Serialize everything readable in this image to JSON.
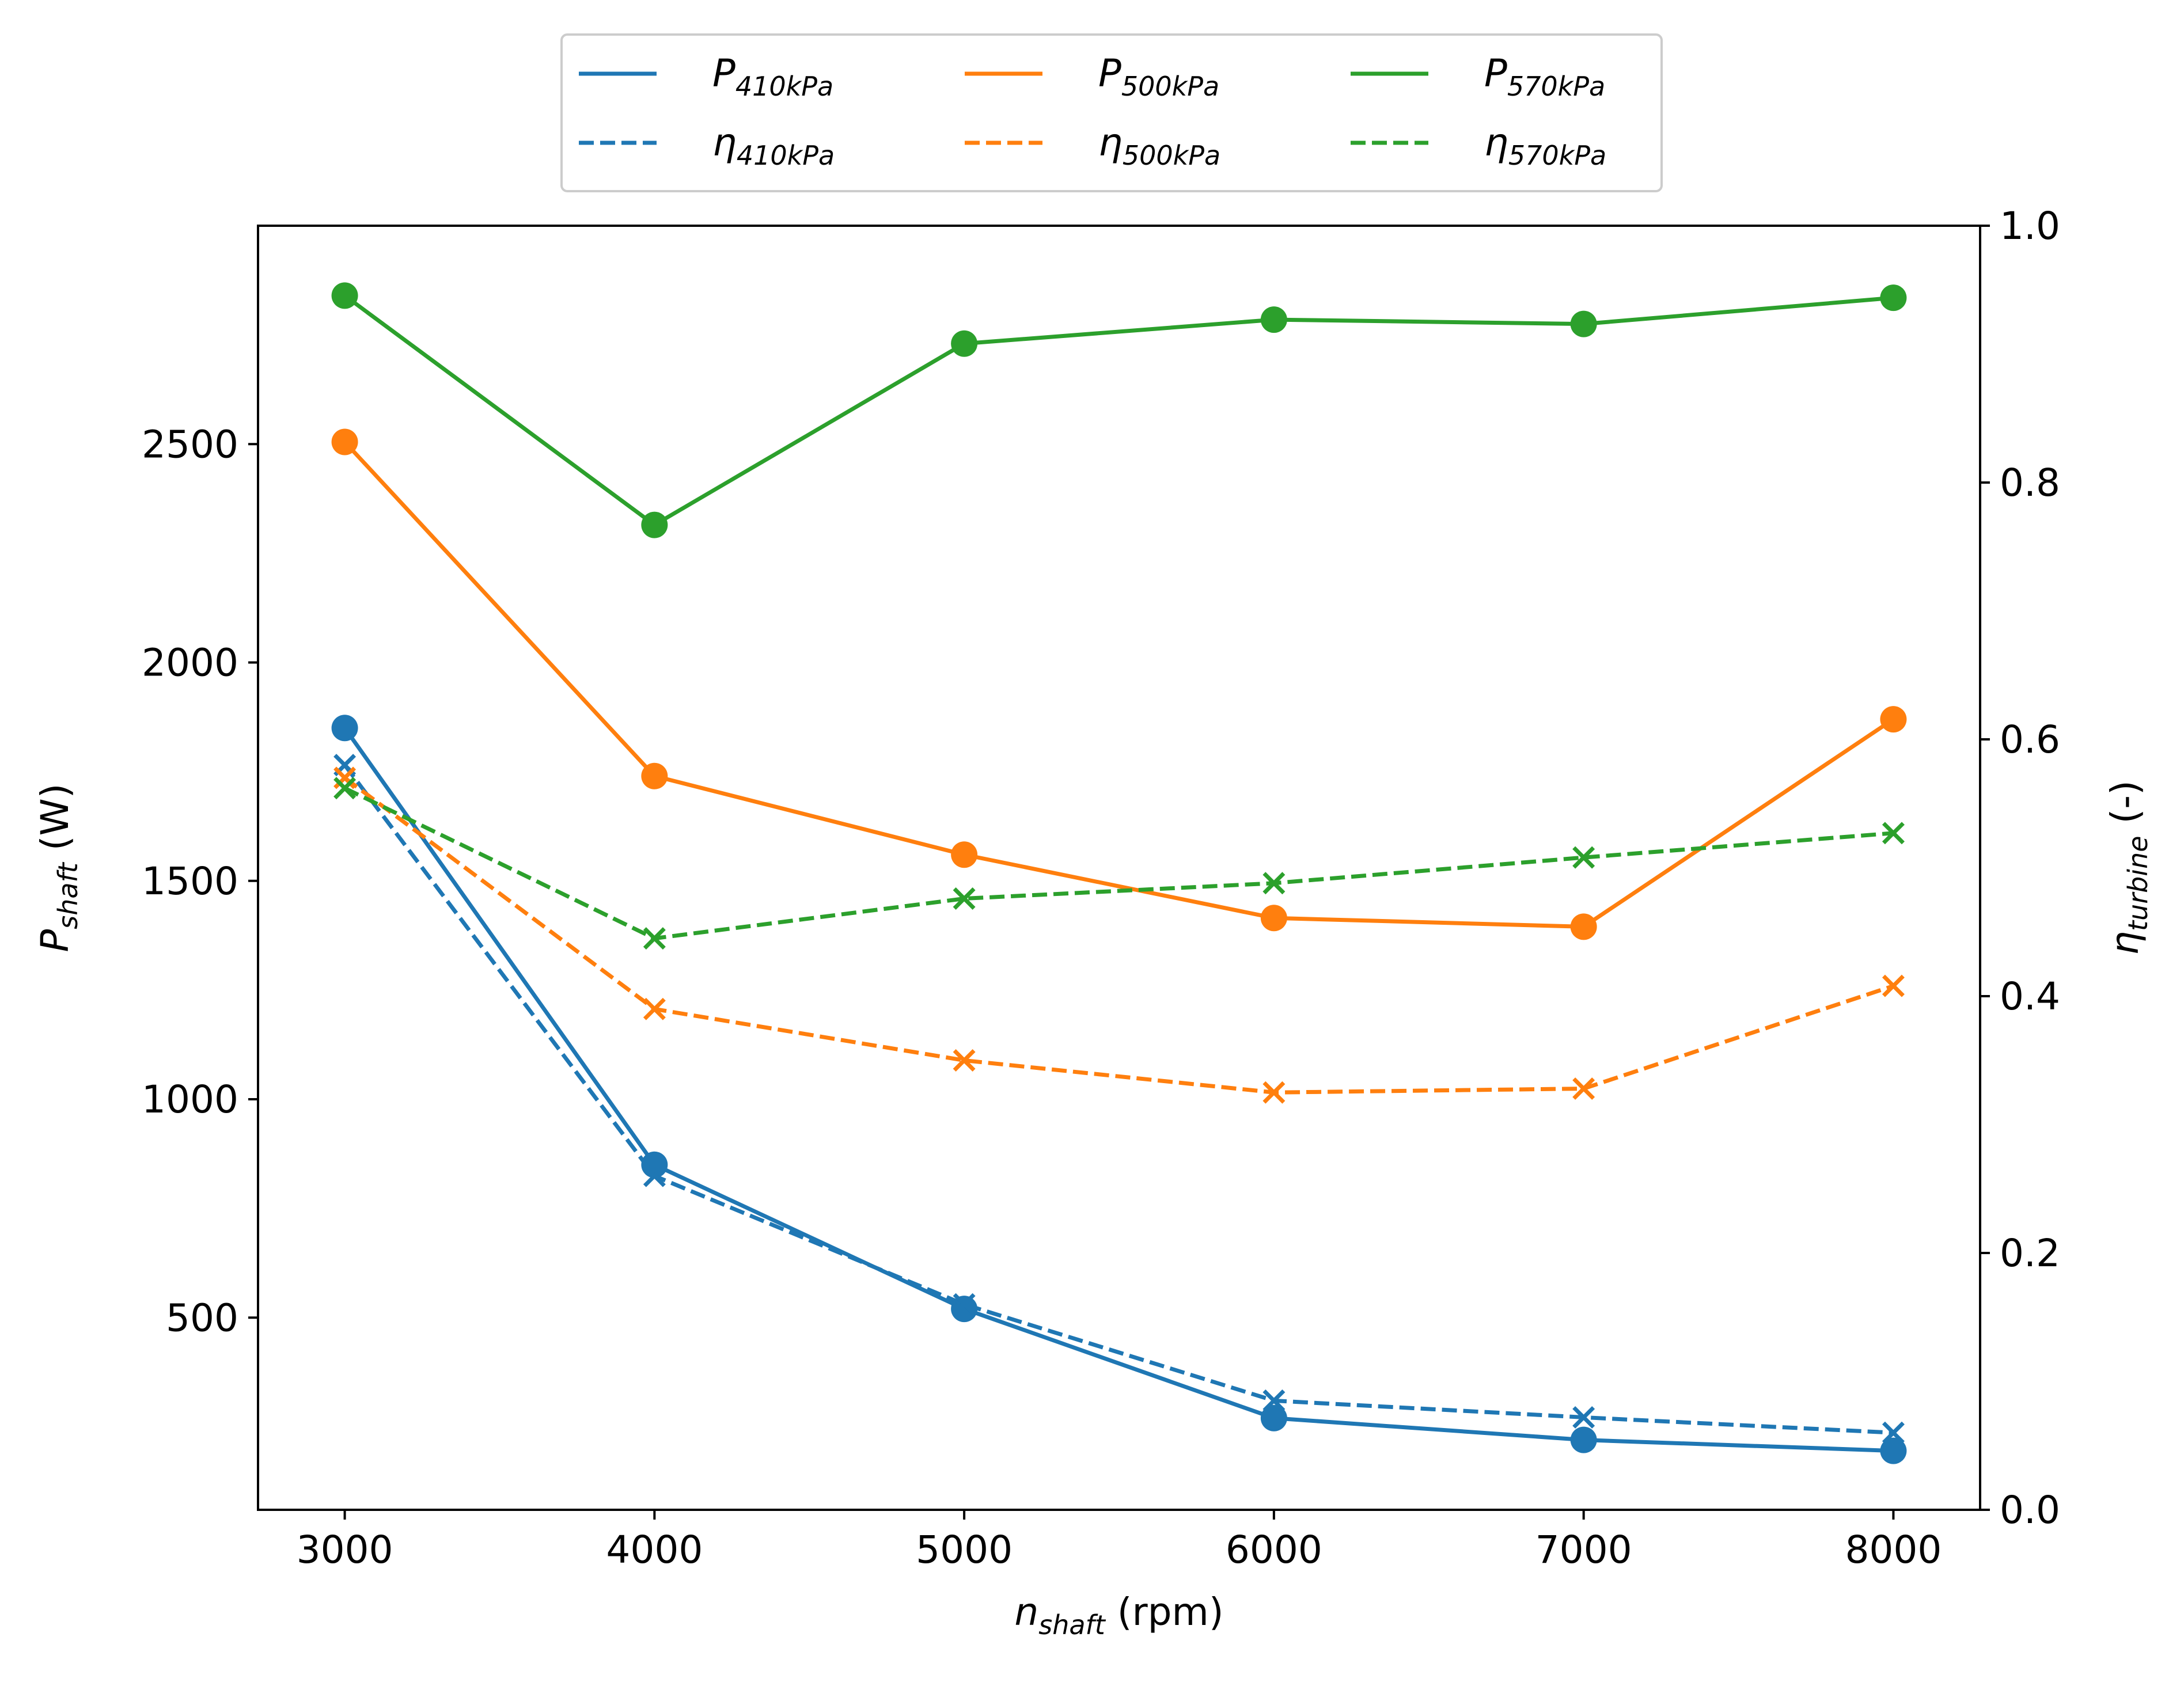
{
  "chart_data": {
    "type": "line",
    "title": "",
    "x": [
      3000,
      4000,
      5000,
      6000,
      7000,
      8000
    ],
    "xlabel": {
      "main": "n",
      "sub": "shaft",
      "unit": " (rpm)"
    },
    "ylabel_left": {
      "main": "P",
      "sub": "shaft",
      "unit": " (W)"
    },
    "ylabel_right": {
      "main": "η",
      "sub": "turbine",
      "unit": " (-)"
    },
    "xlim": [
      2720,
      8280
    ],
    "ylim_left": [
      60,
      3000
    ],
    "ylim_right": [
      0.0,
      1.0
    ],
    "xticks": [
      "3000",
      "4000",
      "5000",
      "6000",
      "7000",
      "8000"
    ],
    "yticks_left": [
      "500",
      "1000",
      "1500",
      "2000",
      "2500"
    ],
    "yticks_right": [
      "0.0",
      "0.2",
      "0.4",
      "0.6",
      "0.8",
      "1.0"
    ],
    "legend_position": "top-center, above plot",
    "series": [
      {
        "name": "P_410kPa",
        "label_main": "P",
        "label_sub": "410kPa",
        "axis": "left",
        "style": "solid",
        "marker": "circle",
        "color": "#1f77b4",
        "values": [
          1850,
          850,
          520,
          270,
          220,
          195
        ]
      },
      {
        "name": "η_410kPa",
        "label_main": "η",
        "label_sub": "410kPa",
        "axis": "right",
        "style": "dashed",
        "marker": "x",
        "color": "#1f77b4",
        "values": [
          0.58,
          0.26,
          0.16,
          0.085,
          0.072,
          0.06
        ]
      },
      {
        "name": "P_500kPa",
        "label_main": "P",
        "label_sub": "500kPa",
        "axis": "left",
        "style": "solid",
        "marker": "circle",
        "color": "#ff7f0e",
        "values": [
          2505,
          1740,
          1560,
          1415,
          1395,
          1870
        ]
      },
      {
        "name": "η_500kPa",
        "label_main": "η",
        "label_sub": "500kPa",
        "axis": "right",
        "style": "dashed",
        "marker": "x",
        "color": "#ff7f0e",
        "values": [
          0.57,
          0.39,
          0.35,
          0.325,
          0.328,
          0.408
        ]
      },
      {
        "name": "P_570kPa",
        "label_main": "P",
        "label_sub": "570kPa",
        "axis": "left",
        "style": "solid",
        "marker": "circle",
        "color": "#2ca02c",
        "values": [
          2840,
          2315,
          2730,
          2785,
          2775,
          2835
        ]
      },
      {
        "name": "η_570kPa",
        "label_main": "η",
        "label_sub": "570kPa",
        "axis": "right",
        "style": "dashed",
        "marker": "x",
        "color": "#2ca02c",
        "values": [
          0.562,
          0.445,
          0.476,
          0.488,
          0.508,
          0.527
        ]
      }
    ],
    "legend_order": [
      0,
      2,
      4,
      1,
      3,
      5
    ]
  }
}
